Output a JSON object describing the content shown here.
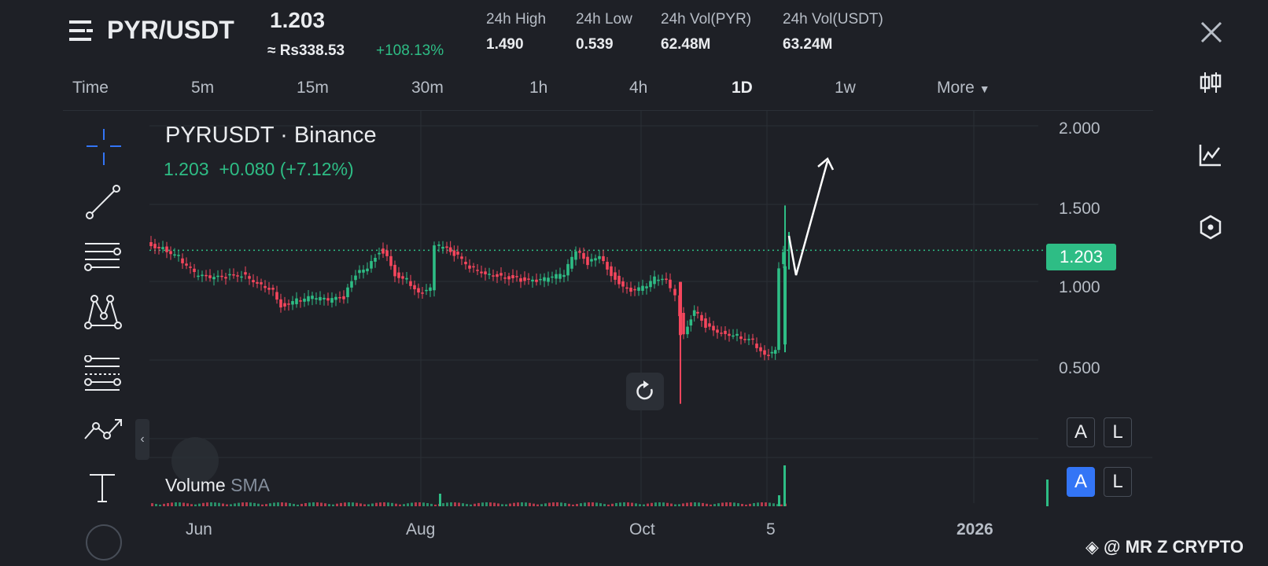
{
  "header": {
    "pair": "PYR/USDT",
    "last_price": "1.203",
    "fiat_price": "≈ Rs338.53",
    "change_pct": "+108.13%",
    "stats": [
      {
        "label": "24h High",
        "value": "1.490"
      },
      {
        "label": "24h Low",
        "value": "0.539"
      },
      {
        "label": "24h Vol(PYR)",
        "value": "62.48M"
      },
      {
        "label": "24h Vol(USDT)",
        "value": "63.24M"
      }
    ]
  },
  "tabs": [
    "Time",
    "5m",
    "15m",
    "30m",
    "1h",
    "4h",
    "1D",
    "1w",
    "More"
  ],
  "active_tab": "1D",
  "chart": {
    "symbol_title": "PYRUSDT · Binance",
    "last": "1.203",
    "change": "+0.080",
    "change_pct": "(+7.12%)",
    "price_tag": "1.203",
    "price_axis": [
      "2.000",
      "1.500",
      "1.000",
      "0.500"
    ],
    "time_axis": [
      "Jun",
      "Aug",
      "Oct",
      "5",
      "2026"
    ],
    "volume_label": "Volume",
    "volume_sub": "SMA",
    "al_buttons": [
      [
        "A",
        "L"
      ],
      [
        "A",
        "L"
      ]
    ]
  },
  "colors": {
    "up": "#2ebd85",
    "down": "#f6465d",
    "accent": "#3375f6",
    "bg": "#1e2026"
  },
  "watermark": "@ MR Z CRYPTO",
  "icons": [
    "menu-icon",
    "close-icon",
    "candlestick-icon",
    "indicator-chart-icon",
    "hexagon-settings-icon",
    "crosshair-icon",
    "trendline-icon",
    "horizontal-lines-icon",
    "pattern-icon",
    "fib-icon",
    "path-icon",
    "text-icon",
    "reset-icon"
  ]
}
